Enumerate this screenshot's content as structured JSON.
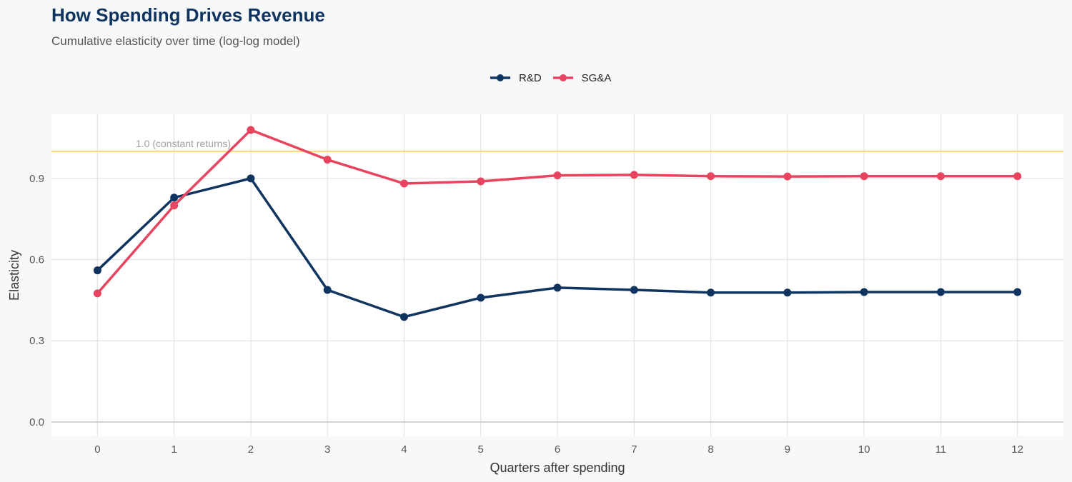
{
  "chart_data": {
    "type": "line",
    "title": "How Spending Drives Revenue",
    "subtitle": "Cumulative elasticity over time (log-log model)",
    "xlabel": "Quarters after spending",
    "ylabel": "Elasticity",
    "x": [
      0,
      1,
      2,
      3,
      4,
      5,
      6,
      7,
      8,
      9,
      10,
      11,
      12
    ],
    "xticks": [
      "0",
      "1",
      "2",
      "3",
      "4",
      "5",
      "6",
      "7",
      "8",
      "9",
      "10",
      "11",
      "12"
    ],
    "yticks": [
      "0.0",
      "0.3",
      "0.6",
      "0.9"
    ],
    "ylim": [
      -0.053,
      1.137
    ],
    "xlim": [
      -0.6,
      12.6
    ],
    "grid": true,
    "legend_position": "top",
    "series": [
      {
        "name": "R&D",
        "color": "#0f3460",
        "values": [
          0.56,
          0.829,
          0.9,
          0.488,
          0.388,
          0.459,
          0.496,
          0.488,
          0.478,
          0.478,
          0.48,
          0.48,
          0.48
        ]
      },
      {
        "name": "SG&A",
        "color": "#e8445f",
        "values": [
          0.475,
          0.8,
          1.079,
          0.969,
          0.881,
          0.889,
          0.911,
          0.913,
          0.908,
          0.907,
          0.908,
          0.908,
          0.908
        ]
      }
    ],
    "reference_line": {
      "value": 1.0,
      "label": "1.0 (constant returns)",
      "color": "#fcd47a"
    }
  }
}
